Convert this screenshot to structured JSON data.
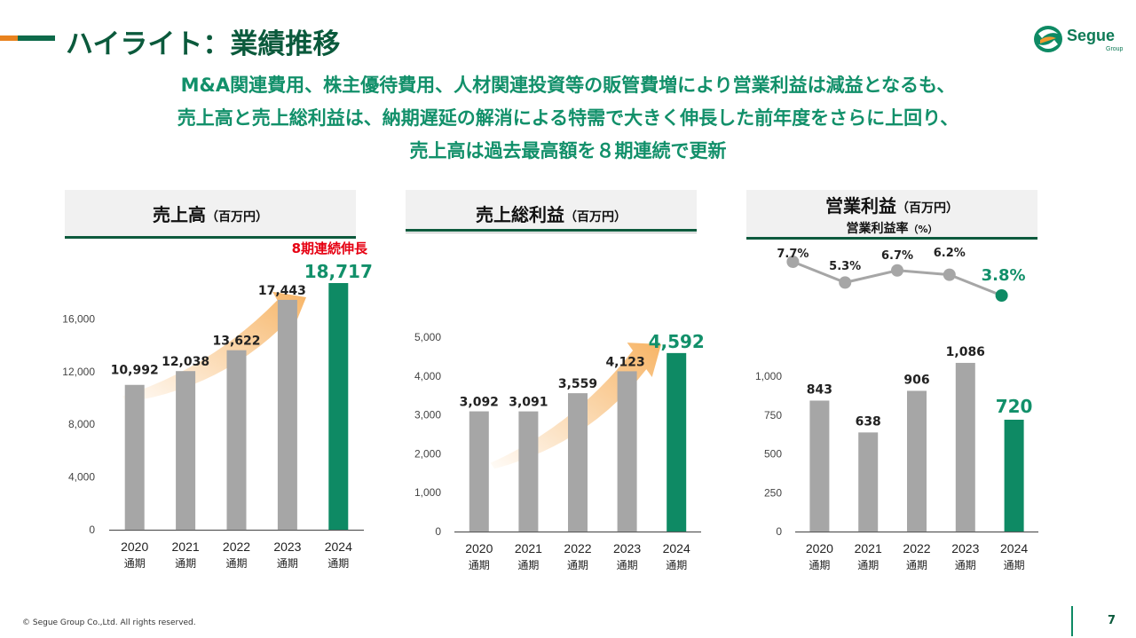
{
  "header": {
    "title": "ハイライト：業績推移",
    "subtitle_lines": [
      "M&A関連費用、株主優待費用、人材関連投資等の販管費増により営業利益は減益となるも、",
      "売上高と売上総利益は、納期遅延の解消による特需で大きく伸長した前年度をさらに上回り、",
      "売上高は過去最高額を８期連続で更新"
    ],
    "logo_text": "Segue",
    "logo_sub": "Group"
  },
  "colors": {
    "brand_dark": "#0b5a3c",
    "brand_green": "#12906a",
    "highlight_bar": "#0e8a64",
    "gray_bar": "#a6a6a6",
    "alert_red": "#e60012",
    "arrow_orange": "#f7b567"
  },
  "panels": {
    "sales": {
      "title": "売上高",
      "unit": "（百万円）"
    },
    "gross": {
      "title": "売上総利益",
      "unit": "（百万円）"
    },
    "op": {
      "title": "営業利益",
      "unit": "（百万円）",
      "subtitle": "営業利益率",
      "subtitle_unit": "（%）"
    }
  },
  "chart_data": [
    {
      "type": "bar",
      "name": "売上高",
      "categories": [
        "2020\n通期",
        "2021\n通期",
        "2022\n通期",
        "2023\n通期",
        "2024\n通期"
      ],
      "values": [
        10992,
        12038,
        13622,
        17443,
        18717
      ],
      "value_labels": [
        "10,992",
        "12,038",
        "13,622",
        "17,443",
        "18,717"
      ],
      "yticks": [
        "0",
        "4,000",
        "8,000",
        "12,000",
        "16,000"
      ],
      "ylim": [
        0,
        18717
      ],
      "annotation": "8期連続伸長",
      "highlight_index": 4,
      "trend_arrow": true
    },
    {
      "type": "bar",
      "name": "売上総利益",
      "categories": [
        "2020\n通期",
        "2021\n通期",
        "2022\n通期",
        "2023\n通期",
        "2024\n通期"
      ],
      "values": [
        3092,
        3091,
        3559,
        4123,
        4592
      ],
      "value_labels": [
        "3,092",
        "3,091",
        "3,559",
        "4,123",
        "4,592"
      ],
      "yticks": [
        "0",
        "1,000",
        "2,000",
        "3,000",
        "4,000",
        "5,000"
      ],
      "ylim": [
        0,
        5000
      ],
      "highlight_index": 4,
      "trend_arrow": true
    },
    {
      "type": "bar",
      "name": "営業利益",
      "categories": [
        "2020\n通期",
        "2021\n通期",
        "2022\n通期",
        "2023\n通期",
        "2024\n通期"
      ],
      "values": [
        843,
        638,
        906,
        1086,
        720
      ],
      "value_labels": [
        "843",
        "638",
        "906",
        "1,086",
        "720"
      ],
      "yticks": [
        "0",
        "250",
        "500",
        "750",
        "1,000"
      ],
      "ylim": [
        0,
        1000
      ],
      "highlight_index": 4,
      "trend_arrow": false
    },
    {
      "type": "line",
      "name": "営業利益率",
      "values": [
        7.7,
        5.3,
        6.7,
        6.2,
        3.8
      ],
      "value_labels": [
        "7.7%",
        "5.3%",
        "6.7%",
        "6.2%",
        "3.8%"
      ],
      "highlight_index": 4
    }
  ],
  "footer": {
    "copyright": "© Segue Group Co.,Ltd. All rights reserved.",
    "page_number": "7"
  }
}
